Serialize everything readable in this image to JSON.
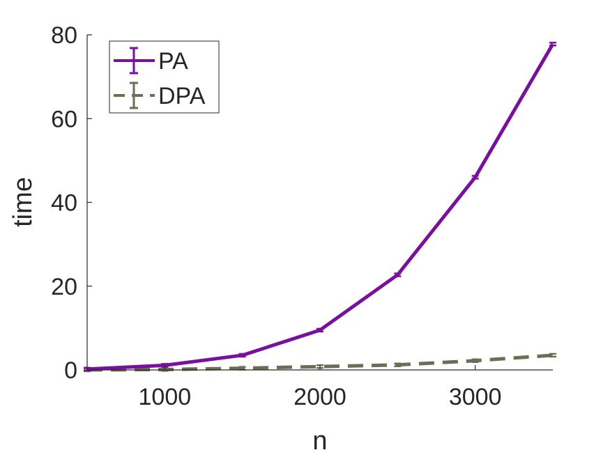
{
  "chart_data": {
    "type": "line",
    "xlabel": "n",
    "ylabel": "time",
    "xlim": [
      500,
      3500
    ],
    "ylim": [
      0,
      80
    ],
    "xticks": [
      1000,
      2000,
      3000
    ],
    "yticks": [
      0,
      20,
      40,
      60,
      80
    ],
    "grid": false,
    "legend_position": "top-left",
    "series": [
      {
        "name": "PA",
        "color": "#7a0e9e",
        "style": "solid",
        "error_bars": true,
        "x": [
          500,
          1000,
          1500,
          2000,
          2500,
          3000,
          3500
        ],
        "y": [
          0.2,
          1.1,
          3.5,
          9.5,
          22.7,
          46.0,
          77.8
        ]
      },
      {
        "name": "DPA",
        "color": "#706b55",
        "style": "dashed",
        "error_bars": true,
        "x": [
          500,
          1000,
          1500,
          2000,
          2500,
          3000,
          3500
        ],
        "y": [
          0.0,
          0.1,
          0.4,
          0.8,
          1.2,
          2.2,
          3.5
        ]
      }
    ]
  }
}
